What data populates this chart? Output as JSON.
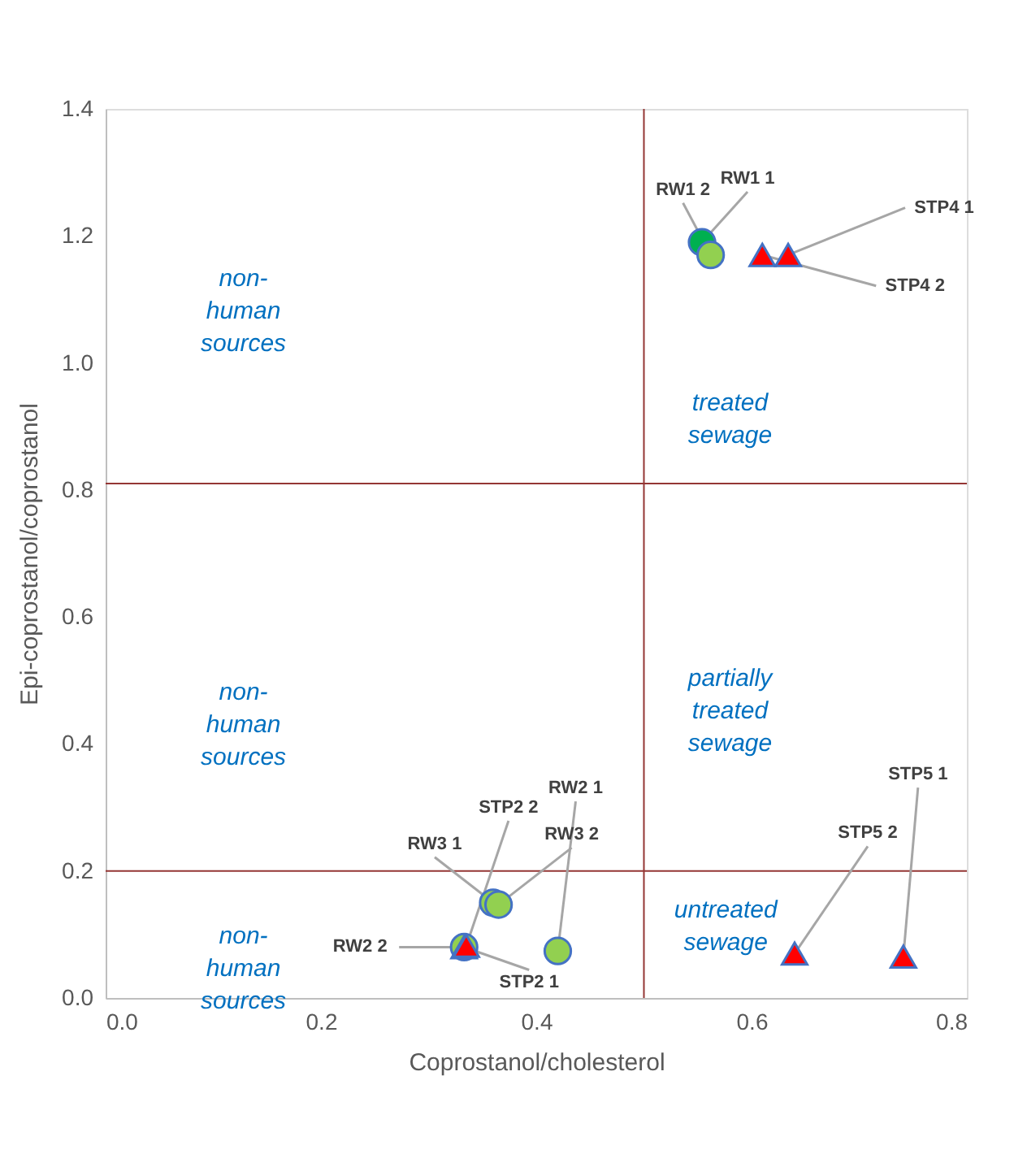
{
  "chart_data": {
    "type": "scatter",
    "xlabel": "Coprostanol/cholesterol",
    "ylabel": "Epi-coprostanol/coprostanol",
    "xlim": [
      0,
      0.8
    ],
    "ylim": [
      0,
      1.4
    ],
    "xticks": [
      {
        "value": 0,
        "label": "0.0"
      },
      0.2,
      0.4,
      0.6,
      0.8
    ],
    "yticks": [
      {
        "value": 0,
        "label": "0.0"
      },
      0.2,
      0.4,
      0.6,
      0.8,
      {
        "value": 1,
        "label": "1.0"
      },
      1.2,
      1.4
    ],
    "grid": false,
    "legend": false,
    "series": [
      {
        "marker": "circle",
        "color": "#92d050",
        "colors": [
          "#00b050",
          "#92d050",
          "#92d050",
          "#92d050",
          "#92d050",
          "#92d050"
        ],
        "x": [
          0.554,
          0.562,
          0.36,
          0.365,
          0.42,
          0.333
        ],
        "values": [
          1.19,
          1.17,
          0.15,
          0.147,
          0.074,
          0.08
        ],
        "value_labels": [
          "RW1 1",
          "RW1 2",
          "RW3 1",
          "RW3 2",
          "RW2 1",
          "RW2 2"
        ]
      },
      {
        "marker": "triangle",
        "color": "#ff0000",
        "x": [
          0.634,
          0.61,
          0.333,
          0.335,
          0.741,
          0.64
        ],
        "values": [
          1.17,
          1.17,
          0.08,
          0.082,
          0.065,
          0.07
        ],
        "value_labels": [
          "STP4  1",
          "STP4  2",
          "STP2 1",
          "STP2 2",
          "STP5  1",
          "STP5  2"
        ]
      }
    ],
    "ref_lines": [
      {
        "axis": "x",
        "value": 0.5,
        "color": "#943634"
      },
      {
        "axis": "y",
        "value": 0.81,
        "color": "#943634"
      },
      {
        "axis": "y",
        "value": 0.2,
        "color": "#943634"
      }
    ],
    "annotations": [
      "non-human sources",
      "non-human sources",
      "non-human sources",
      "treated sewage",
      "partially treated sewage",
      "untreated sewage"
    ]
  }
}
